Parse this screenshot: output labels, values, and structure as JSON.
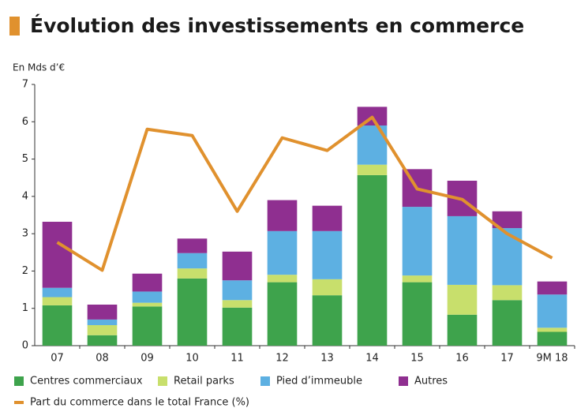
{
  "chart_data": {
    "type": "bar",
    "stacked": true,
    "title": "Évolution des investissements en commerce",
    "ylabel": "En Mds d’€",
    "categories": [
      "07",
      "08",
      "09",
      "10",
      "11",
      "12",
      "13",
      "14",
      "15",
      "16",
      "17",
      "9M 18"
    ],
    "ylim": [
      0,
      7
    ],
    "yticks": [
      0,
      1,
      2,
      3,
      4,
      5,
      6,
      7
    ],
    "grid": false,
    "series": [
      {
        "name": "Centres commerciaux",
        "color": "#3ea34c",
        "values": [
          1.08,
          0.28,
          1.05,
          1.8,
          1.02,
          1.7,
          1.35,
          4.57,
          1.7,
          0.83,
          1.22,
          0.37
        ]
      },
      {
        "name": "Retail parks",
        "color": "#c8df6c",
        "values": [
          0.22,
          0.27,
          0.1,
          0.27,
          0.2,
          0.2,
          0.43,
          0.28,
          0.18,
          0.8,
          0.4,
          0.11
        ]
      },
      {
        "name": "Pied d’immeuble",
        "color": "#5db0e2",
        "values": [
          0.25,
          0.15,
          0.3,
          0.41,
          0.53,
          1.17,
          1.29,
          1.05,
          1.84,
          1.84,
          1.53,
          0.89
        ]
      },
      {
        "name": "Autres",
        "color": "#8f2f90",
        "values": [
          1.77,
          0.4,
          0.48,
          0.39,
          0.77,
          0.83,
          0.68,
          0.5,
          1.01,
          0.95,
          0.45,
          0.35
        ]
      },
      {
        "name": "Part du commerce dans le total France (%)",
        "type": "line",
        "color": "#e0912e",
        "values": [
          2.77,
          2.02,
          5.8,
          5.63,
          3.6,
          5.57,
          5.23,
          6.12,
          4.2,
          3.92,
          3.0,
          2.35
        ]
      }
    ]
  }
}
